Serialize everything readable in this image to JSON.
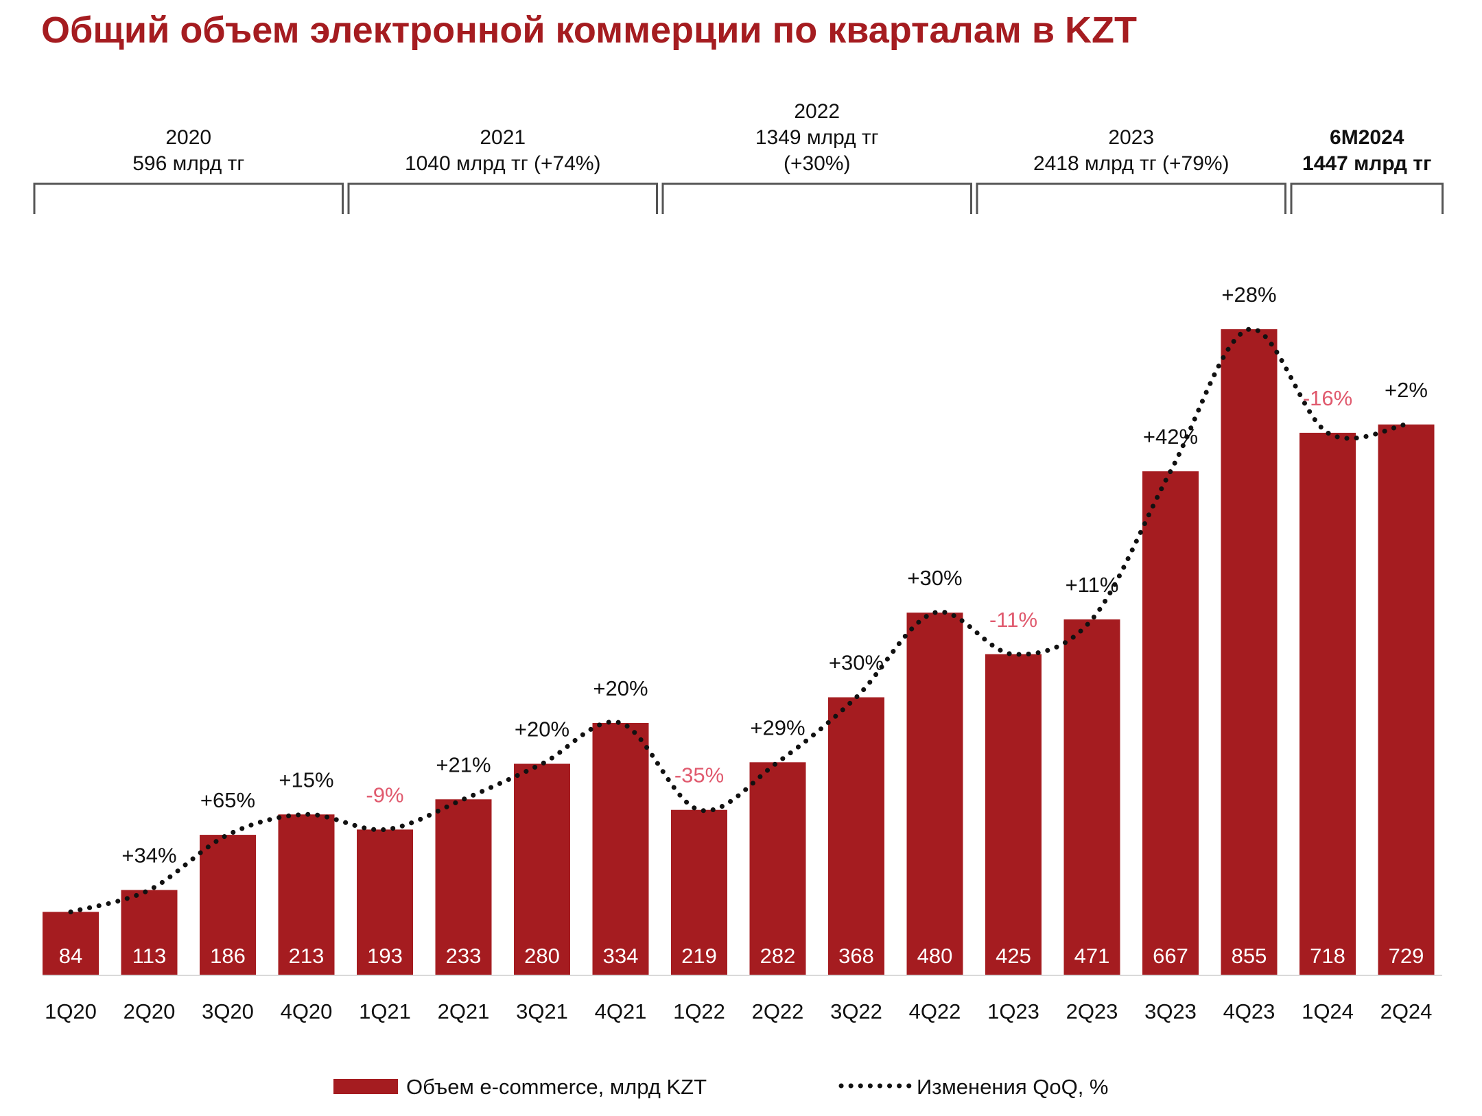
{
  "title": "Общий объем электронной коммерции по кварталам в KZT",
  "colors": {
    "title": "#a51c20",
    "bar": "#a51c20",
    "positive_label": "#111111",
    "negative_label": "#e05a6e",
    "line": "#111111"
  },
  "year_groups": [
    {
      "lines": [
        "2020",
        "596 млрд тг"
      ],
      "bold": false
    },
    {
      "lines": [
        "2021",
        "1040 млрд тг (+74%)"
      ],
      "bold": false
    },
    {
      "lines": [
        "2022",
        "1349 млрд тг",
        "(+30%)"
      ],
      "bold": false
    },
    {
      "lines": [
        "2023",
        "2418 млрд тг (+79%)"
      ],
      "bold": false
    },
    {
      "lines": [
        "6M2024",
        "1447 млрд тг"
      ],
      "bold": true
    }
  ],
  "legend": {
    "bar_label": "Объем e-commerce, млрд KZT",
    "line_label": "Изменения QoQ, %"
  },
  "chart_data": {
    "type": "bar",
    "title": "Общий объем электронной коммерции по кварталам в KZT",
    "categories": [
      "1Q20",
      "2Q20",
      "3Q20",
      "4Q20",
      "1Q21",
      "2Q21",
      "3Q21",
      "4Q21",
      "1Q22",
      "2Q22",
      "3Q22",
      "4Q22",
      "1Q23",
      "2Q23",
      "3Q23",
      "4Q23",
      "1Q24",
      "2Q24"
    ],
    "series": [
      {
        "name": "Объем e-commerce, млрд KZT",
        "type": "bar",
        "values": [
          84,
          113,
          186,
          213,
          193,
          233,
          280,
          334,
          219,
          282,
          368,
          480,
          425,
          471,
          667,
          855,
          718,
          729
        ]
      },
      {
        "name": "Изменения QoQ, %",
        "type": "line",
        "labels": [
          "",
          "+34%",
          "+65%",
          "+15%",
          "-9%",
          "+21%",
          "+20%",
          "+20%",
          "-35%",
          "+29%",
          "+30%",
          "+30%",
          "-11%",
          "+11%",
          "+42%",
          "+28%",
          "-16%",
          "+2%"
        ]
      }
    ],
    "ylim": [
      0,
      900
    ],
    "grid": false,
    "legend": "bottom"
  }
}
